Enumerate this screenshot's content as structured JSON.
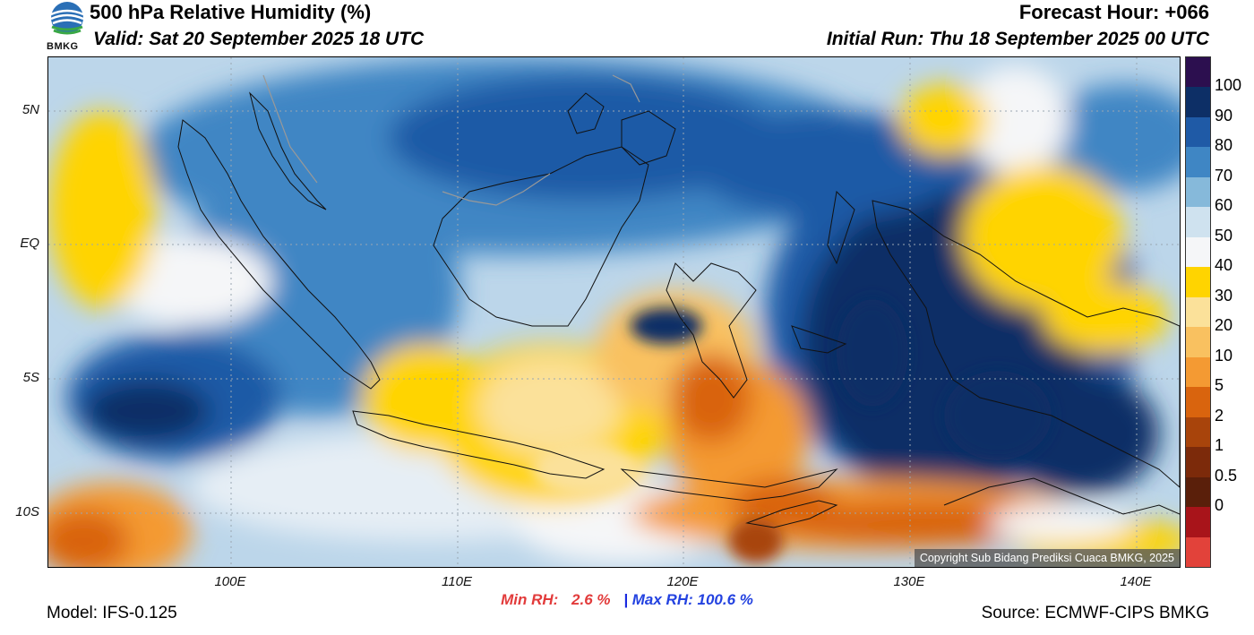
{
  "header": {
    "title": "500 hPa Relative Humidity (%)",
    "valid": "Valid: Sat 20 September 2025 18 UTC",
    "forecast_hour": "Forecast Hour: +066",
    "initial_run": "Initial Run: Thu 18 September 2025 00 UTC",
    "logo_text": "BMKG"
  },
  "axes": {
    "lat_labels": [
      "5N",
      "EQ",
      "5S",
      "10S"
    ],
    "lon_labels": [
      "100E",
      "110E",
      "120E",
      "130E",
      "140E"
    ]
  },
  "colorbar": {
    "labels": [
      "100",
      "90",
      "80",
      "70",
      "60",
      "50",
      "40",
      "30",
      "20",
      "10",
      "5",
      "2",
      "1",
      "0.5",
      "0"
    ],
    "colors": [
      "#2c0f4f",
      "#0d2f66",
      "#1f5aa6",
      "#3f86c4",
      "#86b9da",
      "#cfe2ef",
      "#f5f6f8",
      "#ffd400",
      "#fbe19a",
      "#f9c160",
      "#f49a33",
      "#d9640e",
      "#a8440b",
      "#7c2a0a",
      "#5a1f0a",
      "#a8141a",
      "#e2423a"
    ]
  },
  "footer": {
    "min_label": "Min RH:",
    "min_value": "2.6 %",
    "separator": "|",
    "max_label": "Max RH:",
    "max_value": "100.6 %",
    "model": "Model: IFS-0.125",
    "source": "Source: ECMWF-CIPS BMKG",
    "copyright": "Copyright Sub Bidang Prediksi Cuaca BMKG, 2025"
  }
}
